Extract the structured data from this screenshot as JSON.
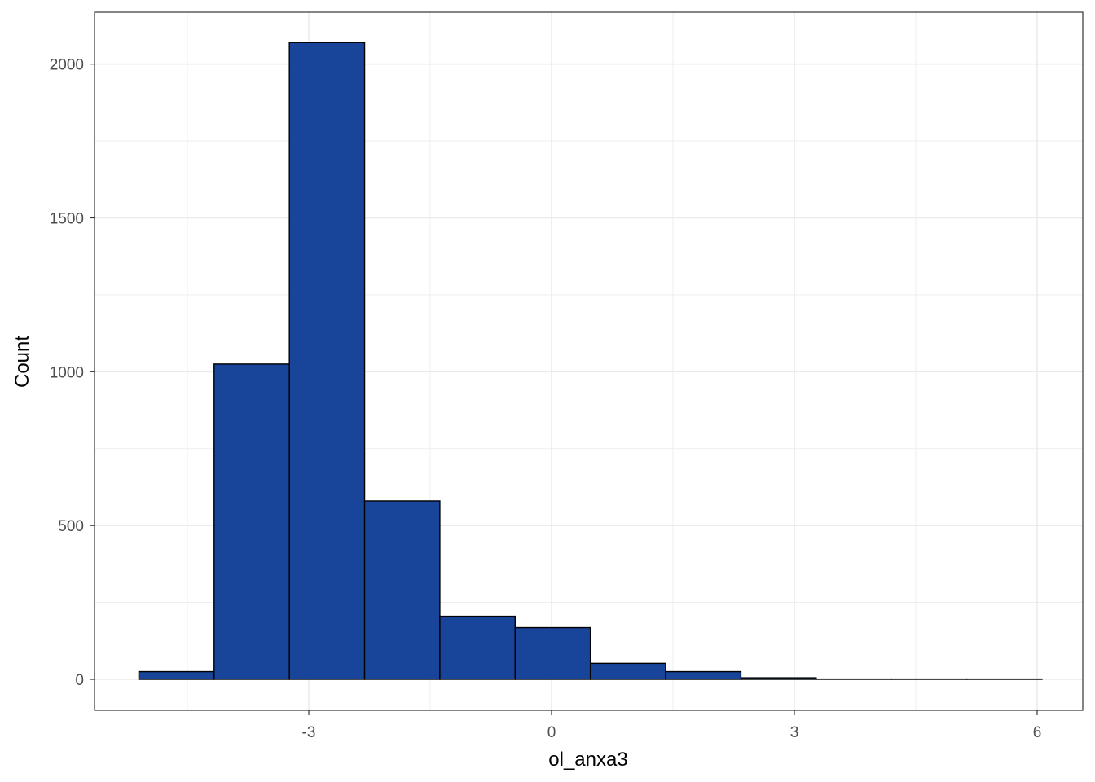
{
  "chart_data": {
    "type": "bar",
    "subtype": "histogram",
    "xlabel": "ol_anxa3",
    "ylabel": "Count",
    "xlim": [
      -5.0,
      6.45
    ],
    "ylim": [
      -100,
      2160
    ],
    "x_ticks": [
      -3,
      0,
      3,
      6
    ],
    "y_ticks": [
      0,
      500,
      1000,
      1500,
      2000
    ],
    "grid": true,
    "bins": [
      {
        "x0": -5.1,
        "x1": -4.17,
        "count": 25
      },
      {
        "x0": -4.17,
        "x1": -3.24,
        "count": 1025
      },
      {
        "x0": -3.24,
        "x1": -2.31,
        "count": 2070
      },
      {
        "x0": -2.31,
        "x1": -1.38,
        "count": 580
      },
      {
        "x0": -1.38,
        "x1": -0.45,
        "count": 205
      },
      {
        "x0": -0.45,
        "x1": 0.48,
        "count": 168
      },
      {
        "x0": 0.48,
        "x1": 1.41,
        "count": 52
      },
      {
        "x0": 1.41,
        "x1": 2.34,
        "count": 25
      },
      {
        "x0": 2.34,
        "x1": 3.27,
        "count": 5
      },
      {
        "x0": 3.27,
        "x1": 4.2,
        "count": 1
      },
      {
        "x0": 4.2,
        "x1": 5.13,
        "count": 1
      },
      {
        "x0": 5.13,
        "x1": 6.06,
        "count": 1
      }
    ],
    "colors": {
      "fill": "#18449A",
      "stroke": "#000000",
      "grid": "#ebebeb",
      "panel_border": "#333333"
    }
  }
}
